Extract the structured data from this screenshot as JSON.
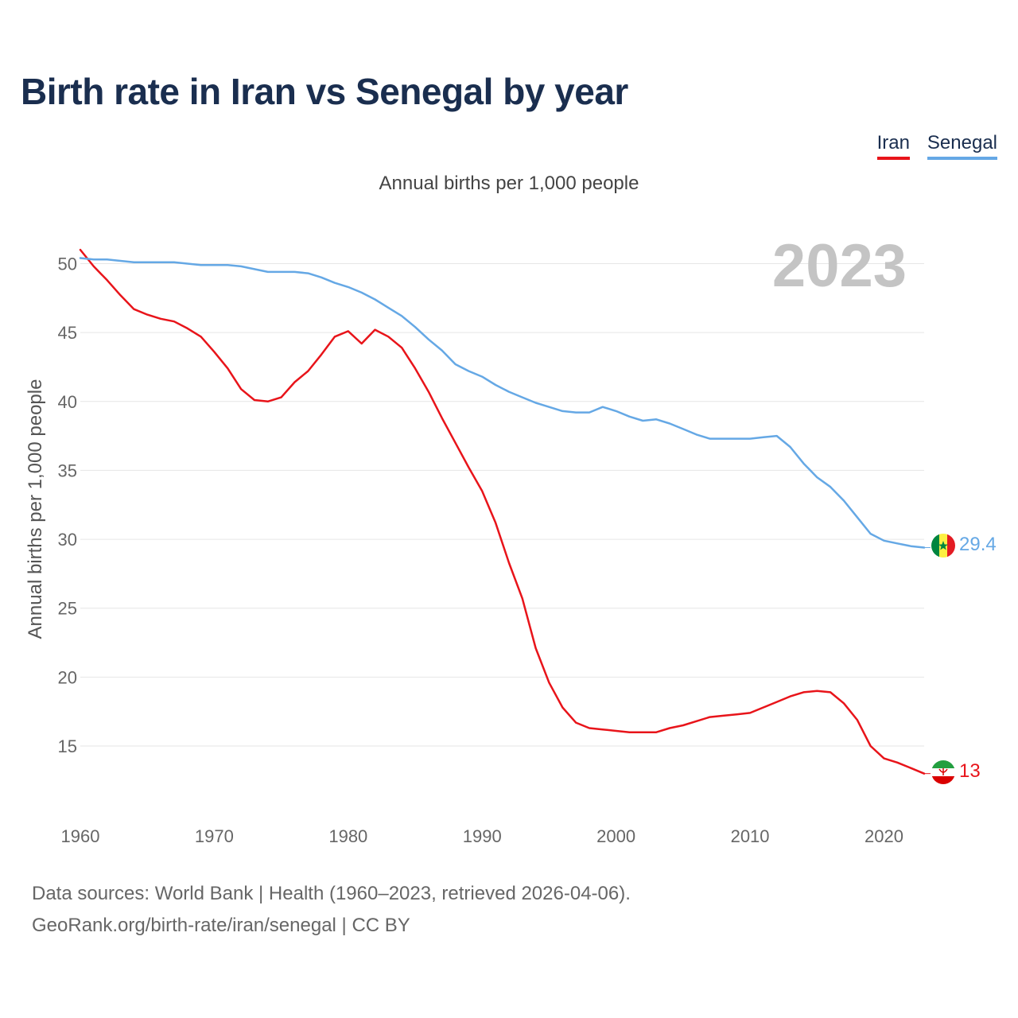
{
  "title": "Birth rate in Iran vs Senegal by year",
  "subtitle": "Annual births per 1,000 people",
  "year_watermark": "2023",
  "footer": {
    "line1": "Data sources: World Bank | Health (1960–2023, retrieved 2026-04-06).",
    "line2": "GeoRank.org/birth-rate/iran/senegal | CC BY"
  },
  "colors": {
    "iran": "#e8141a",
    "senegal": "#65a8e5",
    "title": "#1a2e4f",
    "grid": "#e6e6e6"
  },
  "chart_data": {
    "type": "line",
    "title": "Birth rate in Iran vs Senegal by year",
    "ylabel": "Annual births per 1,000 people",
    "xlabel": "",
    "xlim": [
      1960,
      2023
    ],
    "ylim": [
      10.5,
      51.7
    ],
    "yticks": [
      15,
      20,
      25,
      30,
      35,
      40,
      45,
      50
    ],
    "xticks": [
      1960,
      1970,
      1980,
      1990,
      2000,
      2010,
      2020
    ],
    "grid": true,
    "legend": "top-right",
    "x": [
      1960,
      1961,
      1962,
      1963,
      1964,
      1965,
      1966,
      1967,
      1968,
      1969,
      1970,
      1971,
      1972,
      1973,
      1974,
      1975,
      1976,
      1977,
      1978,
      1979,
      1980,
      1981,
      1982,
      1983,
      1984,
      1985,
      1986,
      1987,
      1988,
      1989,
      1990,
      1991,
      1992,
      1993,
      1994,
      1995,
      1996,
      1997,
      1998,
      1999,
      2000,
      2001,
      2002,
      2003,
      2004,
      2005,
      2006,
      2007,
      2008,
      2009,
      2010,
      2011,
      2012,
      2013,
      2014,
      2015,
      2016,
      2017,
      2018,
      2019,
      2020,
      2021,
      2022,
      2023
    ],
    "series": [
      {
        "name": "Iran",
        "color": "#e8141a",
        "end_label": "13",
        "values": [
          51.0,
          49.8,
          48.8,
          47.7,
          46.7,
          46.3,
          46.0,
          45.8,
          45.3,
          44.7,
          43.6,
          42.4,
          40.9,
          40.1,
          40.0,
          40.3,
          41.4,
          42.2,
          43.4,
          44.7,
          45.1,
          44.2,
          45.2,
          44.7,
          43.9,
          42.4,
          40.7,
          38.8,
          37.0,
          35.2,
          33.5,
          31.2,
          28.3,
          25.7,
          22.1,
          19.6,
          17.8,
          16.7,
          16.3,
          16.2,
          16.1,
          16.0,
          16.0,
          16.0,
          16.3,
          16.5,
          16.8,
          17.1,
          17.2,
          17.3,
          17.4,
          17.8,
          18.2,
          18.6,
          18.9,
          19.0,
          18.9,
          18.1,
          16.9,
          15.0,
          14.1,
          13.8,
          13.4,
          13.0
        ]
      },
      {
        "name": "Senegal",
        "color": "#65a8e5",
        "end_label": "29.4",
        "values": [
          50.4,
          50.3,
          50.3,
          50.2,
          50.1,
          50.1,
          50.1,
          50.1,
          50.0,
          49.9,
          49.9,
          49.9,
          49.8,
          49.6,
          49.4,
          49.4,
          49.4,
          49.3,
          49.0,
          48.6,
          48.3,
          47.9,
          47.4,
          46.8,
          46.2,
          45.4,
          44.5,
          43.7,
          42.7,
          42.2,
          41.8,
          41.2,
          40.7,
          40.3,
          39.9,
          39.6,
          39.3,
          39.2,
          39.2,
          39.6,
          39.3,
          38.9,
          38.6,
          38.7,
          38.4,
          38.0,
          37.6,
          37.3,
          37.3,
          37.3,
          37.3,
          37.4,
          37.5,
          36.7,
          35.5,
          34.5,
          33.8,
          32.8,
          31.6,
          30.4,
          29.9,
          29.7,
          29.5,
          29.4
        ]
      }
    ]
  }
}
